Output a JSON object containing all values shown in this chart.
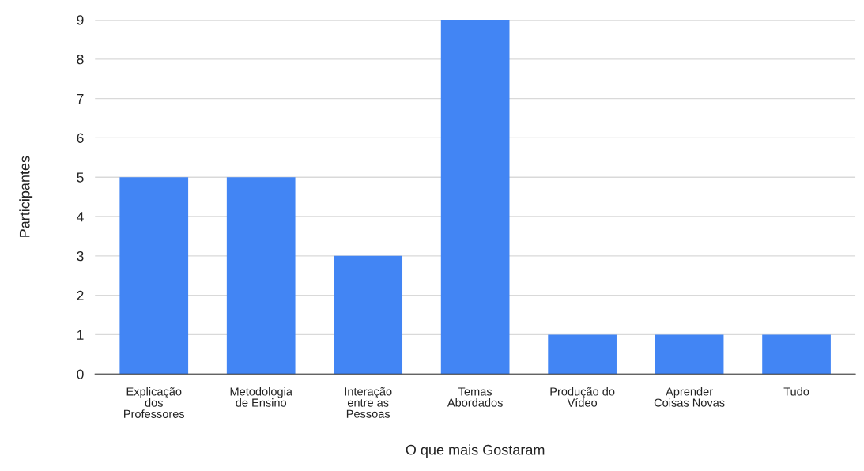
{
  "chart_data": {
    "type": "bar",
    "xlabel": "O que mais Gostaram",
    "ylabel": "Participantes",
    "categories": [
      "Explicação\ndos\nProfessores",
      "Metodologia\nde Ensino",
      "Interação\nentre as\nPessoas",
      "Temas\nAbordados",
      "Produção do\nVídeo",
      "Aprender\nCoisas Novas",
      "Tudo"
    ],
    "values": [
      5,
      5,
      3,
      9,
      1,
      1,
      1
    ],
    "color": "#4285f4",
    "ylim": [
      0,
      9
    ],
    "yticks": [
      0,
      1,
      2,
      3,
      4,
      5,
      6,
      7,
      8,
      9
    ],
    "grid": "y"
  }
}
